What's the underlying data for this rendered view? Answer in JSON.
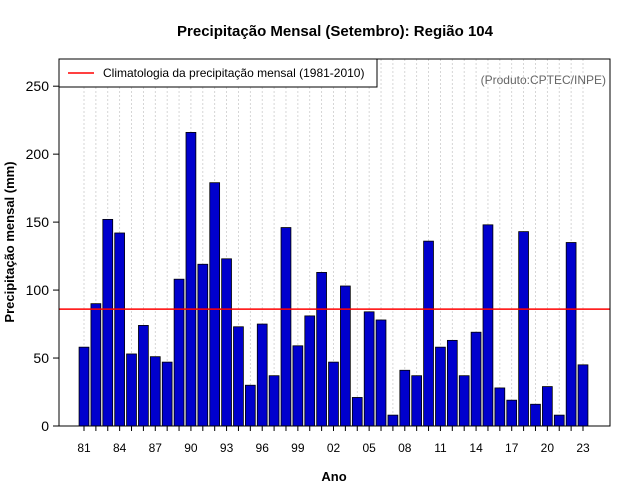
{
  "chart_data": {
    "type": "bar",
    "title": "Precipitação Mensal (Setembro): Região 104",
    "xlabel": "Ano",
    "ylabel": "Precipitação mensal (mm)",
    "ylim": [
      0,
      270
    ],
    "yticks": [
      0,
      50,
      100,
      150,
      200,
      250
    ],
    "years": [
      "1981",
      "1982",
      "1983",
      "1984",
      "1985",
      "1986",
      "1987",
      "1988",
      "1989",
      "1990",
      "1991",
      "1992",
      "1993",
      "1994",
      "1995",
      "1996",
      "1997",
      "1998",
      "1999",
      "2000",
      "2001",
      "2002",
      "2003",
      "2004",
      "2005",
      "2006",
      "2007",
      "2008",
      "2009",
      "2010",
      "2011",
      "2012",
      "2013",
      "2014",
      "2015",
      "2016",
      "2017",
      "2018",
      "2019",
      "2020",
      "2021",
      "2022",
      "2023"
    ],
    "xtick_labels": [
      "81",
      "84",
      "87",
      "90",
      "93",
      "96",
      "99",
      "02",
      "05",
      "08",
      "11",
      "14",
      "17",
      "20",
      "23"
    ],
    "values": [
      58,
      90,
      152,
      142,
      53,
      74,
      51,
      47,
      108,
      216,
      119,
      179,
      123,
      73,
      30,
      75,
      37,
      146,
      59,
      81,
      113,
      47,
      103,
      21,
      84,
      78,
      8,
      41,
      37,
      136,
      58,
      63,
      37,
      69,
      148,
      28,
      19,
      143,
      16,
      29,
      8,
      135,
      45
    ],
    "climatology": 86,
    "legend": "Climatologia da precipitação mensal (1981-2010)",
    "credit": "(Produto:CPTEC/INPE)",
    "bar_color": "#0000CD",
    "climatology_color": "#FF0000",
    "grid": true
  }
}
